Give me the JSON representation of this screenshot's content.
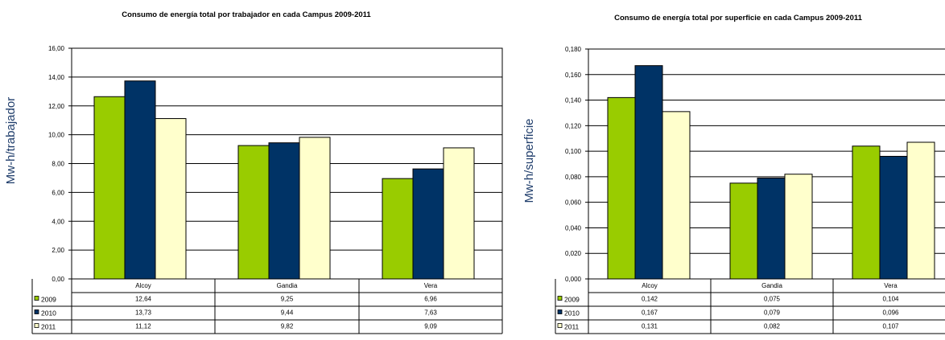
{
  "colors": {
    "2009": "#99cc00",
    "2010": "#003366",
    "2011": "#ffffcc",
    "ylabel": "#1f3d6b",
    "grid": "#000000"
  },
  "chart_data": [
    {
      "type": "bar",
      "title": "Consumo de energía total por trabajador en cada Campus 2009-2011",
      "ylabel": "Mw-h/trabajador",
      "xlabel": "",
      "categories": [
        "Alcoy",
        "Gandia",
        "Vera"
      ],
      "ylim": [
        0,
        16
      ],
      "yticks": [
        "0,00",
        "2,00",
        "4,00",
        "6,00",
        "8,00",
        "10,00",
        "12,00",
        "14,00",
        "16,00"
      ],
      "grid": true,
      "legend": "data-table",
      "series": [
        {
          "name": "2009",
          "values": [
            12.64,
            9.25,
            6.96
          ],
          "labels": [
            "12,64",
            "9,25",
            "6,96"
          ]
        },
        {
          "name": "2010",
          "values": [
            13.73,
            9.44,
            7.63
          ],
          "labels": [
            "13,73",
            "9,44",
            "7,63"
          ]
        },
        {
          "name": "2011",
          "values": [
            11.12,
            9.82,
            9.09
          ],
          "labels": [
            "11,12",
            "9,82",
            "9,09"
          ]
        }
      ]
    },
    {
      "type": "bar",
      "title": "Consumo de energía total por superficie en cada Campus 2009-2011",
      "ylabel": "Mw-h/superficie",
      "xlabel": "",
      "categories": [
        "Alcoy",
        "Gandia",
        "Vera"
      ],
      "ylim": [
        0,
        0.18
      ],
      "yticks": [
        "0,000",
        "0,020",
        "0,040",
        "0,060",
        "0,080",
        "0,100",
        "0,120",
        "0,140",
        "0,160",
        "0,180"
      ],
      "grid": true,
      "legend": "data-table",
      "series": [
        {
          "name": "2009",
          "values": [
            0.142,
            0.075,
            0.104
          ],
          "labels": [
            "0,142",
            "0,075",
            "0,104"
          ]
        },
        {
          "name": "2010",
          "values": [
            0.167,
            0.079,
            0.096
          ],
          "labels": [
            "0,167",
            "0,079",
            "0,096"
          ]
        },
        {
          "name": "2011",
          "values": [
            0.131,
            0.082,
            0.107
          ],
          "labels": [
            "0,131",
            "0,082",
            "0,107"
          ]
        }
      ]
    }
  ]
}
